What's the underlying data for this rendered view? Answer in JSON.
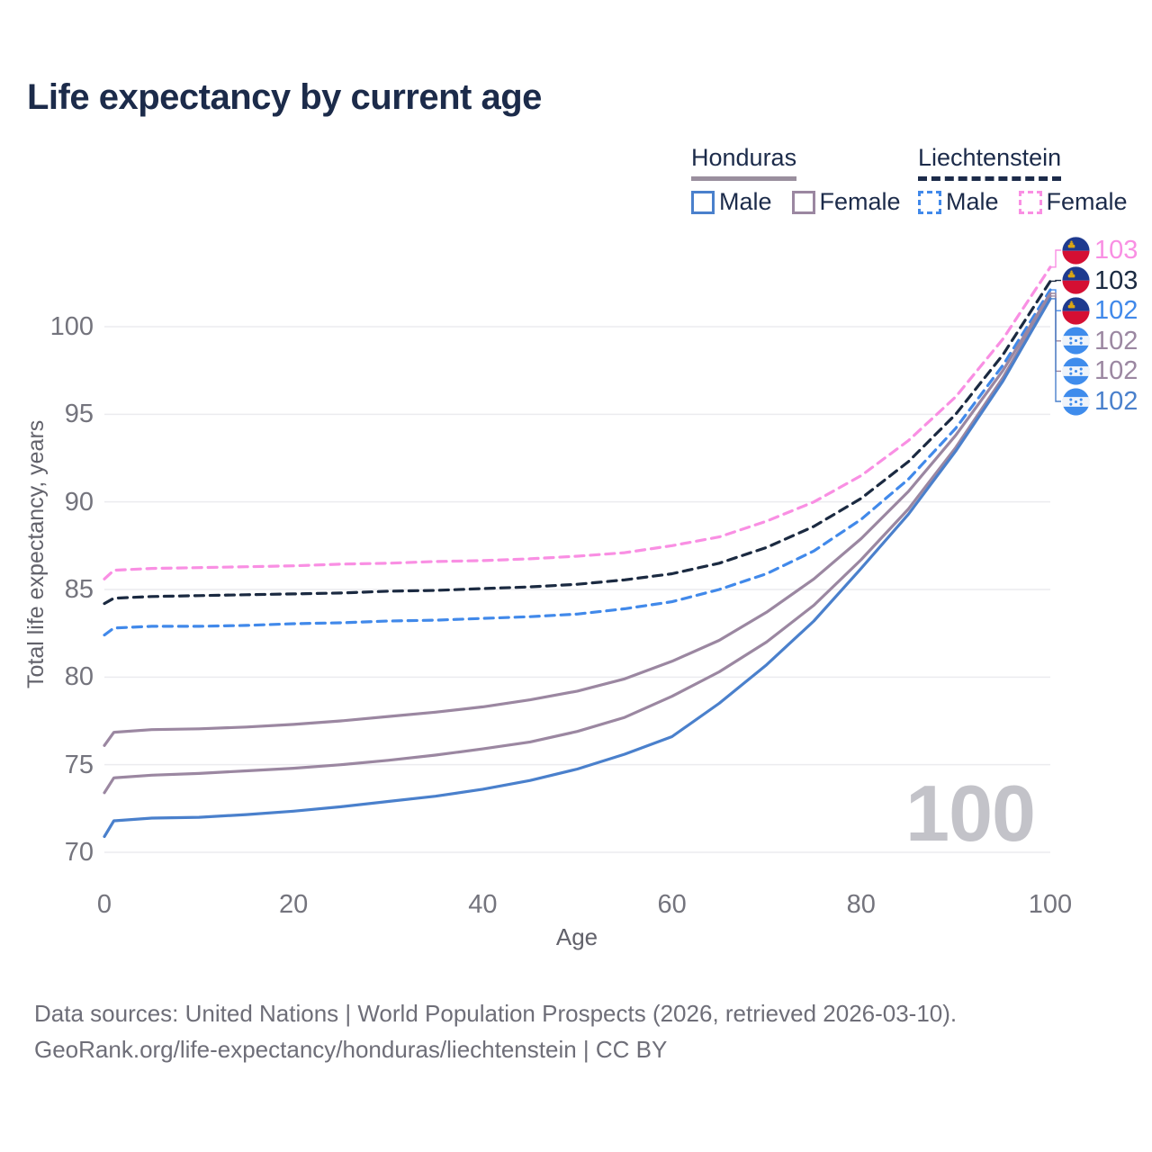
{
  "title": "Life expectancy by current age",
  "watermark": "100",
  "legend": {
    "groups": [
      {
        "name": "Honduras",
        "line_style": "solid",
        "underline_color": "#9a8f9e",
        "items": [
          {
            "label": "Male",
            "color": "#4a80cc"
          },
          {
            "label": "Female",
            "color": "#9b87a1"
          }
        ]
      },
      {
        "name": "Liechtenstein",
        "line_style": "dashed",
        "underline_color": "#1c2b4a",
        "items": [
          {
            "label": "Male",
            "color": "#4189ea"
          },
          {
            "label": "Female",
            "color": "#f98fe3"
          }
        ]
      }
    ]
  },
  "footer": {
    "line1": "Data sources: United Nations | World Population Prospects (2026, retrieved 2026-03-10).",
    "line2": "GeoRank.org/life-expectancy/honduras/liechtenstein | CC BY"
  },
  "colors": {
    "background": "#ffffff",
    "title_text": "#1c2b4a",
    "tick_text": "#74747d",
    "axis_title_text": "#62626b",
    "grid": "#ebebef",
    "footer_text": "#6e6e78",
    "watermark": "#c3c3c9"
  },
  "flag_colors": {
    "liechtenstein": {
      "top": "#1e3a8f",
      "bottom": "#d50f33",
      "crown": "#d9a514"
    },
    "honduras": {
      "field": "#3f8cec",
      "band": "#f0f4fa",
      "stars": "#3f8cec"
    }
  },
  "chart_data": {
    "type": "line",
    "title": "Life expectancy by current age",
    "xlabel": "Age",
    "ylabel": "Total life expectancy, years",
    "xlim": [
      0,
      100
    ],
    "ylim": [
      70,
      100
    ],
    "x_ticks": [
      0,
      20,
      40,
      60,
      80,
      100
    ],
    "y_ticks": [
      70,
      75,
      80,
      85,
      90,
      95,
      100
    ],
    "grid": "horizontal",
    "legend_position": "top-right",
    "x": [
      0,
      1,
      5,
      10,
      15,
      20,
      25,
      30,
      35,
      40,
      45,
      50,
      55,
      60,
      65,
      70,
      75,
      80,
      85,
      90,
      95,
      100
    ],
    "series": [
      {
        "name": "liechtenstein-female",
        "country": "Liechtenstein",
        "sex": "female",
        "color": "#f98fe3",
        "dashed": true,
        "end_label": "103",
        "flag": "liechtenstein",
        "values": [
          85.6,
          86.1,
          86.2,
          86.25,
          86.3,
          86.35,
          86.45,
          86.5,
          86.6,
          86.65,
          86.75,
          86.9,
          87.1,
          87.5,
          88.0,
          88.9,
          90.0,
          91.5,
          93.5,
          96.0,
          99.3,
          103.4
        ]
      },
      {
        "name": "liechtenstein-both-sexes",
        "country": "Liechtenstein",
        "sex": "both",
        "color": "#1b2a41",
        "dashed": true,
        "end_label": "103",
        "flag": "liechtenstein",
        "values": [
          84.2,
          84.5,
          84.6,
          84.65,
          84.7,
          84.75,
          84.8,
          84.9,
          84.95,
          85.05,
          85.15,
          85.3,
          85.55,
          85.9,
          86.5,
          87.4,
          88.6,
          90.2,
          92.3,
          95.0,
          98.4,
          102.6
        ]
      },
      {
        "name": "liechtenstein-male",
        "country": "Liechtenstein",
        "sex": "male",
        "color": "#4189ea",
        "dashed": true,
        "end_label": "102",
        "flag": "liechtenstein",
        "values": [
          82.4,
          82.8,
          82.9,
          82.9,
          82.95,
          83.05,
          83.1,
          83.2,
          83.25,
          83.35,
          83.45,
          83.6,
          83.9,
          84.3,
          85.0,
          85.9,
          87.2,
          89.0,
          91.3,
          94.2,
          97.8,
          102.1
        ]
      },
      {
        "name": "honduras-female",
        "country": "Honduras",
        "sex": "female",
        "color": "#9b87a1",
        "dashed": false,
        "end_label": "102",
        "flag": "honduras",
        "values": [
          76.1,
          76.85,
          77.0,
          77.05,
          77.15,
          77.3,
          77.5,
          77.75,
          78.0,
          78.3,
          78.7,
          79.2,
          79.9,
          80.9,
          82.1,
          83.7,
          85.6,
          87.9,
          90.6,
          93.8,
          97.5,
          101.9
        ]
      },
      {
        "name": "honduras-both-sexes",
        "country": "Honduras",
        "sex": "both",
        "color": "#9b87a1",
        "dashed": false,
        "end_label": "102",
        "flag": "honduras",
        "values": [
          73.4,
          74.25,
          74.4,
          74.5,
          74.65,
          74.8,
          75.0,
          75.25,
          75.55,
          75.9,
          76.3,
          76.9,
          77.7,
          78.9,
          80.3,
          82.0,
          84.1,
          86.7,
          89.6,
          93.1,
          97.1,
          101.75
        ]
      },
      {
        "name": "honduras-male",
        "country": "Honduras",
        "sex": "male",
        "color": "#4a80cc",
        "dashed": false,
        "end_label": "102",
        "flag": "honduras",
        "values": [
          70.9,
          71.8,
          71.95,
          72.0,
          72.15,
          72.35,
          72.6,
          72.9,
          73.2,
          73.6,
          74.1,
          74.75,
          75.6,
          76.6,
          78.5,
          80.7,
          83.2,
          86.2,
          89.3,
          92.9,
          96.9,
          101.6
        ]
      }
    ]
  }
}
